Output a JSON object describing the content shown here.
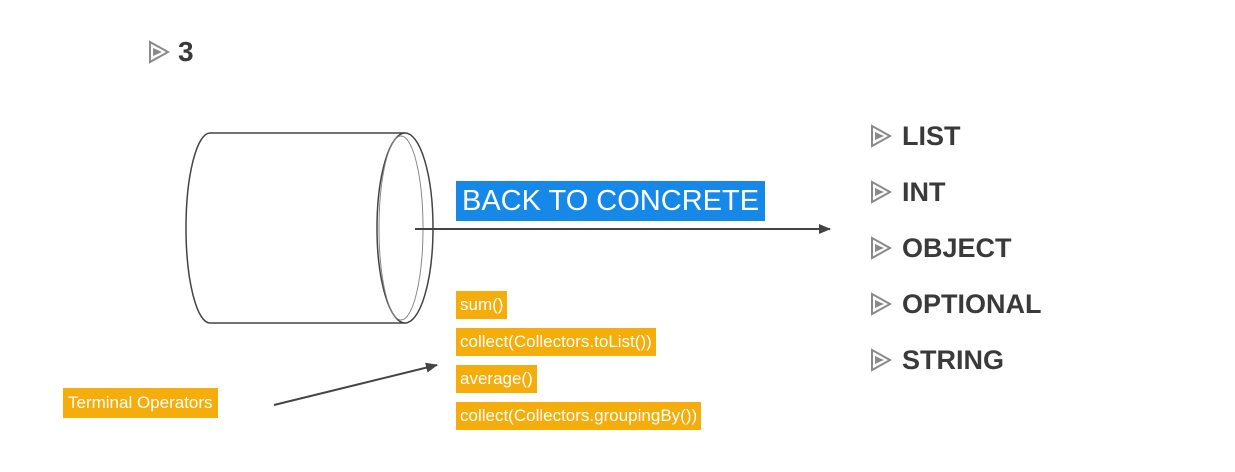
{
  "step": {
    "number": "3",
    "icon": "triangle-bullet-icon"
  },
  "banner": {
    "label": "BACK TO CONCRETE",
    "color": "#1688e8"
  },
  "result_types": [
    {
      "label": "LIST"
    },
    {
      "label": "INT"
    },
    {
      "label": "OBJECT"
    },
    {
      "label": "OPTIONAL"
    },
    {
      "label": "STRING"
    }
  ],
  "operators": [
    {
      "label": "sum()"
    },
    {
      "label": "collect(Collectors.toList())"
    },
    {
      "label": "average()"
    },
    {
      "label": "collect(Collectors.groupingBy())"
    }
  ],
  "terminal_label": "Terminal Operators",
  "colors": {
    "highlight": "#f4ad0a",
    "text": "#3a3a3a",
    "line": "#444444"
  }
}
